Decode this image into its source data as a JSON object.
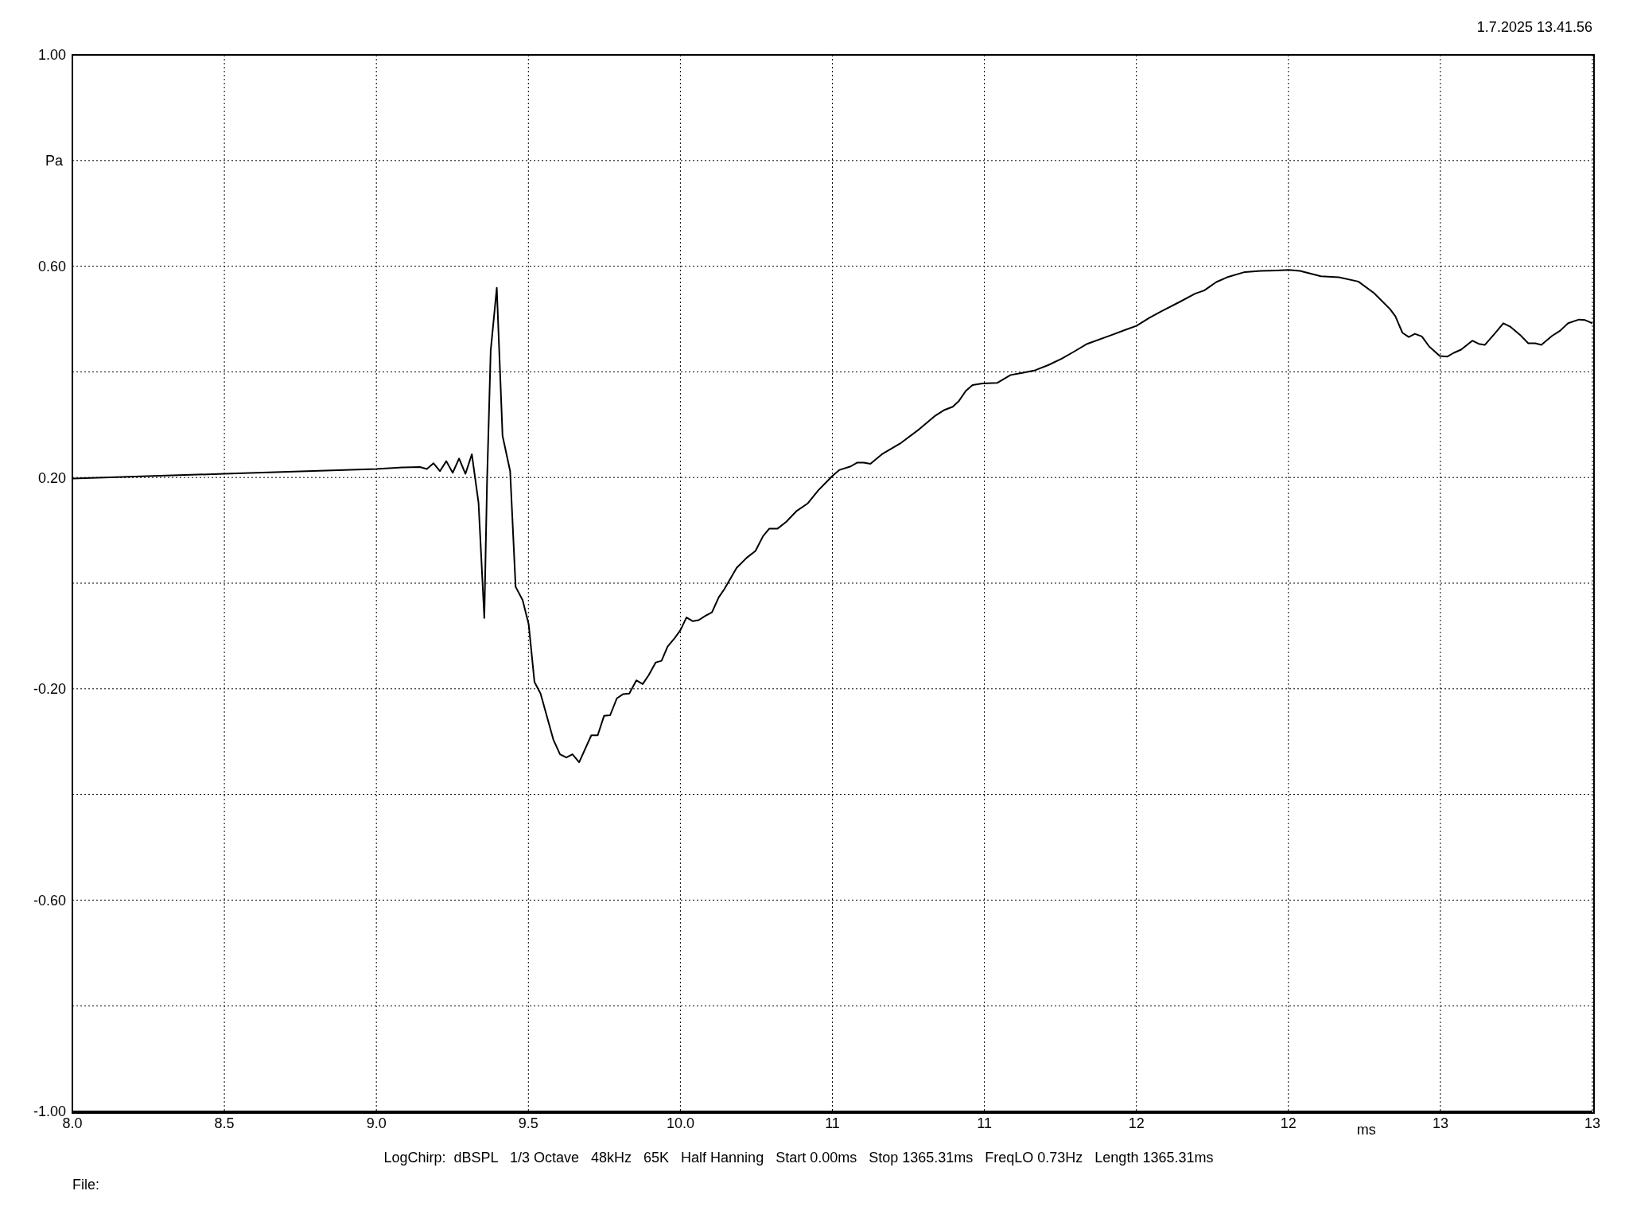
{
  "chart_data": {
    "type": "line",
    "xlabel": "ms",
    "ylabel": "Pa",
    "annotations": [
      "1.7.2025 13.41.56",
      "LogChirp:  dBSPL   1/3 Octave   48kHz   65K   Half Hanning   Start 0.00ms   Stop 1365.31ms   FreqLO 0.73Hz   Length 1365.31ms",
      "File:"
    ],
    "x": [
      8.0,
      8.5,
      9.0,
      9.086,
      9.143,
      9.166,
      9.188,
      9.209,
      9.23,
      9.251,
      9.272,
      9.293,
      9.314,
      9.336,
      9.355,
      9.364,
      9.376,
      9.396,
      9.415,
      9.44,
      9.458,
      9.481,
      9.501,
      9.52,
      9.54,
      9.582,
      9.604,
      9.625,
      9.645,
      9.667,
      9.707,
      9.728,
      9.749,
      9.769,
      9.791,
      9.812,
      9.832,
      9.855,
      9.876,
      9.896,
      9.919,
      9.938,
      9.958,
      9.98,
      10.0,
      10.02,
      10.041,
      10.06,
      10.082,
      10.104,
      10.126,
      10.145,
      10.185,
      10.218,
      10.247,
      10.272,
      10.292,
      10.319,
      10.348,
      10.381,
      10.419,
      10.454,
      10.5,
      10.522,
      10.56,
      10.581,
      10.603,
      10.625,
      10.663,
      10.722,
      10.787,
      10.836,
      10.869,
      10.896,
      10.915,
      10.939,
      10.961,
      10.993,
      11.042,
      11.086,
      11.124,
      11.167,
      11.211,
      11.254,
      11.297,
      11.338,
      11.42,
      11.466,
      11.5,
      11.542,
      11.583,
      11.641,
      11.693,
      11.723,
      11.763,
      11.798,
      11.857,
      11.909,
      11.963,
      12.0,
      12.038,
      12.107,
      12.166,
      12.23,
      12.282,
      12.334,
      12.352,
      12.375,
      12.396,
      12.416,
      12.439,
      12.463,
      12.498,
      12.523,
      12.544,
      12.568,
      12.605,
      12.626,
      12.646,
      12.678,
      12.707,
      12.731,
      12.762,
      12.789,
      12.812,
      12.832,
      12.867,
      12.894,
      12.92,
      12.956,
      12.976,
      13.0
    ],
    "values": [
      0.198,
      0.207,
      0.216,
      0.219,
      0.22,
      0.216,
      0.227,
      0.212,
      0.231,
      0.209,
      0.236,
      0.207,
      0.244,
      0.152,
      -0.066,
      0.191,
      0.44,
      0.559,
      0.279,
      0.212,
      -0.007,
      -0.032,
      -0.078,
      -0.187,
      -0.209,
      -0.296,
      -0.324,
      -0.33,
      -0.324,
      -0.339,
      -0.288,
      -0.288,
      -0.251,
      -0.25,
      -0.218,
      -0.21,
      -0.209,
      -0.184,
      -0.191,
      -0.174,
      -0.15,
      -0.147,
      -0.12,
      -0.105,
      -0.089,
      -0.065,
      -0.072,
      -0.07,
      -0.062,
      -0.055,
      -0.027,
      -0.011,
      0.029,
      0.048,
      0.061,
      0.089,
      0.103,
      0.103,
      0.116,
      0.136,
      0.151,
      0.176,
      0.203,
      0.214,
      0.221,
      0.228,
      0.228,
      0.226,
      0.244,
      0.264,
      0.292,
      0.316,
      0.328,
      0.334,
      0.344,
      0.364,
      0.375,
      0.378,
      0.379,
      0.394,
      0.398,
      0.403,
      0.413,
      0.425,
      0.439,
      0.453,
      0.47,
      0.48,
      0.487,
      0.502,
      0.515,
      0.532,
      0.548,
      0.554,
      0.57,
      0.579,
      0.589,
      0.591,
      0.592,
      0.593,
      0.591,
      0.581,
      0.579,
      0.571,
      0.549,
      0.519,
      0.505,
      0.474,
      0.466,
      0.472,
      0.467,
      0.448,
      0.43,
      0.429,
      0.436,
      0.442,
      0.459,
      0.453,
      0.451,
      0.472,
      0.492,
      0.485,
      0.47,
      0.454,
      0.454,
      0.451,
      0.468,
      0.478,
      0.492,
      0.499,
      0.498,
      0.492
    ],
    "color": "#000000",
    "xlim": [
      8.0,
      13.0
    ],
    "xticks": [
      {
        "value": 8.0,
        "label": "8.0"
      },
      8.5,
      {
        "value": 9.0,
        "label": "9.0"
      },
      9.5,
      {
        "value": 10.0,
        "label": "10.0"
      },
      {
        "value": 10.5,
        "label": "11"
      },
      11,
      {
        "value": 11.5,
        "label": "12"
      },
      12,
      {
        "value": 12.5,
        "label": "13"
      },
      13
    ],
    "ylim": [
      -1.0,
      1.0
    ],
    "yticks": [
      {
        "value": -1.0,
        "label": "-1.00"
      },
      {
        "value": -0.8,
        "label": null
      },
      {
        "value": -0.6,
        "label": "-0.60"
      },
      {
        "value": -0.4,
        "label": null
      },
      {
        "value": -0.2,
        "label": "-0.20"
      },
      {
        "value": 0,
        "label": null
      },
      {
        "value": 0.2,
        "label": "0.20"
      },
      {
        "value": 0.4,
        "label": null
      },
      {
        "value": 0.6,
        "label": "0.60"
      },
      {
        "value": 0.8,
        "label": null
      },
      {
        "value": 1.0,
        "label": "1.00"
      }
    ],
    "grid": true,
    "marker": "none",
    "line_style": "solid"
  }
}
